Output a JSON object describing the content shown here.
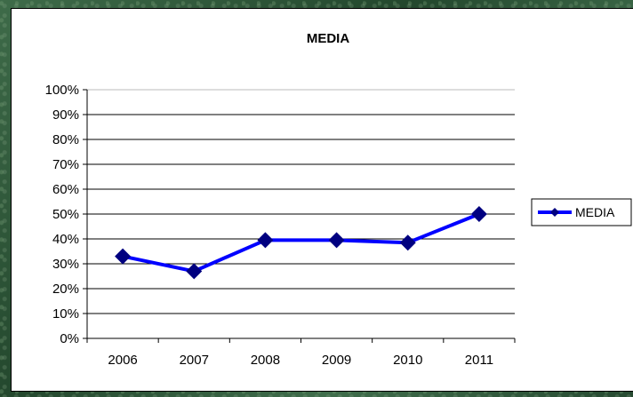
{
  "chart_data": {
    "type": "line",
    "title": "MEDIA",
    "categories": [
      "2006",
      "2007",
      "2008",
      "2009",
      "2010",
      "2011"
    ],
    "series": [
      {
        "name": "MEDIA",
        "values": [
          0.33,
          0.27,
          0.395,
          0.395,
          0.385,
          0.5
        ],
        "color": "#0000ff",
        "marker_color": "#000080"
      }
    ],
    "ylim": [
      0,
      1
    ],
    "yticks": [
      "0%",
      "10%",
      "20%",
      "30%",
      "40%",
      "50%",
      "60%",
      "70%",
      "80%",
      "90%",
      "100%"
    ],
    "grid": true,
    "legend": "right"
  }
}
